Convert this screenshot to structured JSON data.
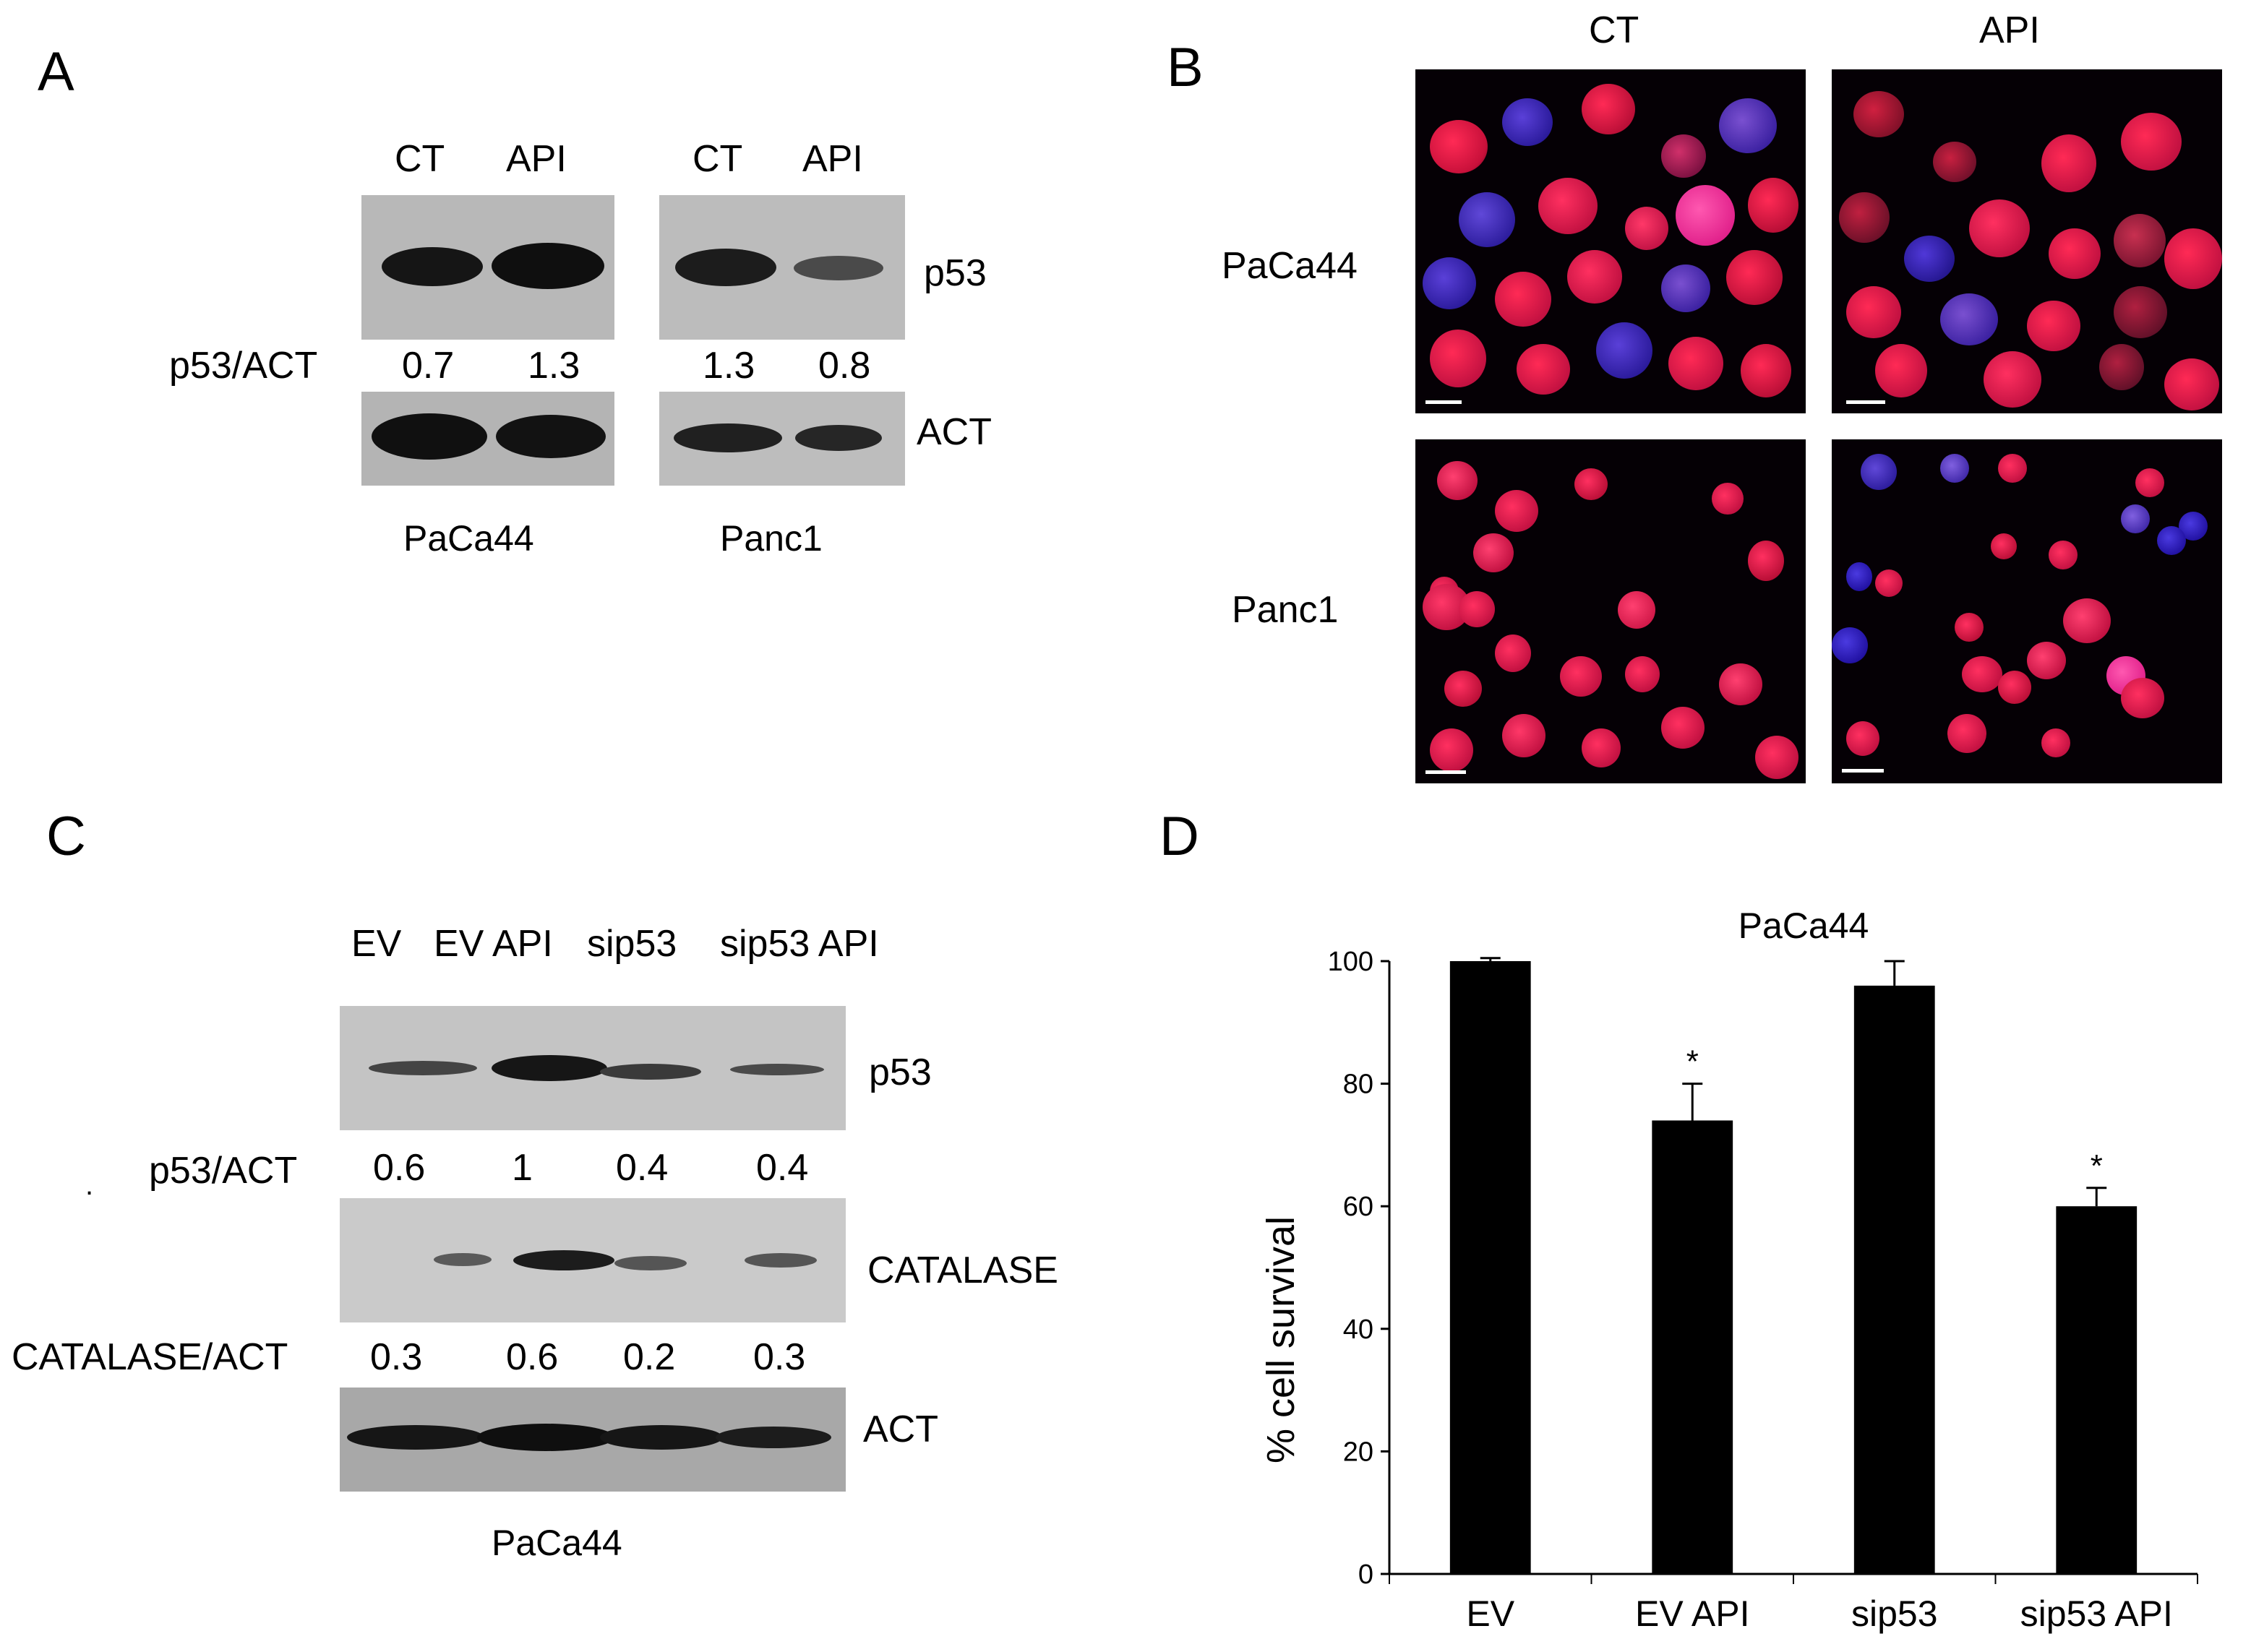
{
  "panels": {
    "a": {
      "letter": "A",
      "lanes": [
        "CT",
        "API",
        "CT",
        "API"
      ],
      "ratio_label": "p53/ACT",
      "ratios": [
        "0.7",
        "1.3",
        "1.3",
        "0.8"
      ],
      "row_labels": [
        "p53",
        "ACT"
      ],
      "cell_lines": [
        "PaCa44",
        "Panc1"
      ]
    },
    "b": {
      "letter": "B",
      "columns": [
        "CT",
        "API"
      ],
      "rows": [
        "PaCa44",
        "Panc1"
      ]
    },
    "c": {
      "letter": "C",
      "lanes": [
        "EV",
        "EV API",
        "sip53",
        "sip53 API"
      ],
      "row_labels": [
        "p53",
        "CATALASE",
        "ACT"
      ],
      "ratio_labels": [
        "p53/ACT",
        "CATALASE/ACT"
      ],
      "p53_ratios": [
        "0.6",
        "1",
        "0.4",
        "0.4"
      ],
      "catalase_ratios": [
        "0.3",
        "0.6",
        "0.2",
        "0.3"
      ],
      "cell_line": "PaCa44",
      "stray_dot": "."
    },
    "d": {
      "letter": "D"
    }
  },
  "chart_data": {
    "type": "bar",
    "title": "PaCa44",
    "ylabel": "% cell survival",
    "xlabel": "",
    "categories": [
      "EV",
      "EV API",
      "sip53",
      "sip53 API"
    ],
    "values": [
      100,
      74,
      96,
      60
    ],
    "errors": [
      0.5,
      6,
      4,
      3
    ],
    "significance": [
      "",
      "*",
      "",
      "*"
    ],
    "ylim": [
      0,
      100
    ],
    "yticks": [
      0,
      20,
      40,
      60,
      80,
      100
    ],
    "bar_color": "#000000",
    "grid": false,
    "legend": "none"
  }
}
